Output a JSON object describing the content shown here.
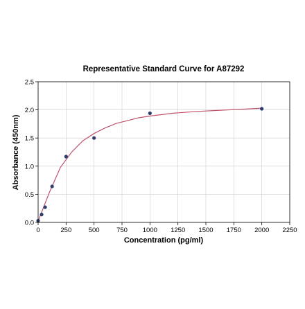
{
  "chart_data": {
    "type": "scatter",
    "title": "Representative Standard Curve for A87292",
    "xlabel": "Concentration (pg/ml)",
    "ylabel": "Absorbance (450nm)",
    "xlim": [
      0,
      2250
    ],
    "ylim": [
      0,
      2.5
    ],
    "x_ticks": [
      0,
      250,
      500,
      750,
      1000,
      1250,
      1500,
      1750,
      2000,
      2250
    ],
    "y_ticks": [
      0.0,
      0.5,
      1.0,
      1.5,
      2.0,
      2.5
    ],
    "x_tick_labels": [
      "0",
      "250",
      "500",
      "750",
      "1000",
      "1250",
      "1500",
      "1750",
      "2000",
      "2250"
    ],
    "y_tick_labels": [
      "0.0",
      "0.5",
      "1.0",
      "1.5",
      "2.0",
      "2.5"
    ],
    "grid": true,
    "legend": "none",
    "series": [
      {
        "type": "scatter",
        "x": [
          0,
          31.25,
          62.5,
          125,
          250,
          500,
          1000,
          2000
        ],
        "y": [
          0.03,
          0.14,
          0.27,
          0.64,
          1.17,
          1.5,
          1.94,
          2.02
        ]
      },
      {
        "type": "line",
        "x": [
          0,
          100,
          200,
          300,
          400,
          500,
          600,
          700,
          800,
          900,
          1000,
          1200,
          1400,
          1600,
          1800,
          2000
        ],
        "y": [
          0.02,
          0.53,
          0.98,
          1.25,
          1.45,
          1.58,
          1.68,
          1.76,
          1.81,
          1.86,
          1.89,
          1.94,
          1.97,
          1.99,
          2.01,
          2.03
        ]
      }
    ],
    "colors": {
      "points": "#2e3d6e",
      "curve": "#c0506a",
      "grid": "#cccccc",
      "axes": "#000000"
    }
  }
}
